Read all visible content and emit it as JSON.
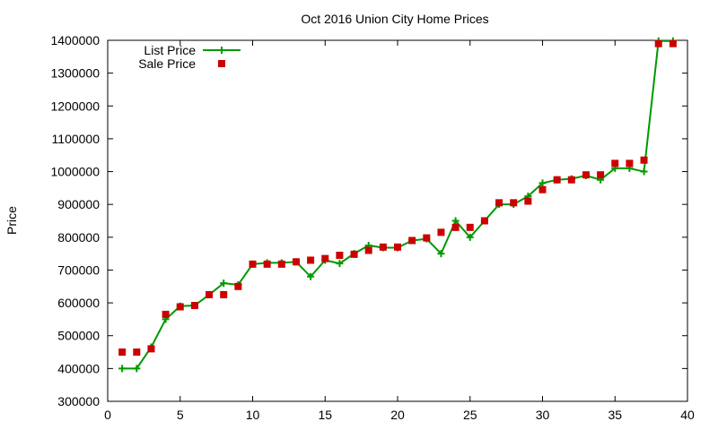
{
  "chart_data": {
    "type": "line",
    "title": "Oct 2016 Union City Home Prices",
    "xlabel": "",
    "ylabel": "Price",
    "xlim": [
      0,
      40
    ],
    "ylim": [
      300000,
      1400000
    ],
    "x_ticks": [
      0,
      5,
      10,
      15,
      20,
      25,
      30,
      35,
      40
    ],
    "y_ticks": [
      300000,
      400000,
      500000,
      600000,
      700000,
      800000,
      900000,
      1000000,
      1100000,
      1200000,
      1300000,
      1400000
    ],
    "grid": false,
    "legend_position": "top-left",
    "x": [
      1,
      2,
      3,
      4,
      5,
      6,
      7,
      8,
      9,
      10,
      11,
      12,
      13,
      14,
      15,
      16,
      17,
      18,
      19,
      20,
      21,
      22,
      23,
      24,
      25,
      26,
      27,
      28,
      29,
      30,
      31,
      32,
      33,
      34,
      35,
      36,
      37,
      38,
      39
    ],
    "series": [
      {
        "name": "List Price",
        "style": "line-cross",
        "color": "#009900",
        "values": [
          400000,
          400000,
          465000,
          550000,
          590000,
          592000,
          625000,
          660000,
          655000,
          718000,
          722000,
          722000,
          725000,
          680000,
          730000,
          720000,
          750000,
          775000,
          768000,
          768000,
          790000,
          795000,
          750000,
          850000,
          800000,
          850000,
          900000,
          900000,
          925000,
          965000,
          975000,
          978000,
          988000,
          975000,
          1010000,
          1010000,
          1000000,
          1398000,
          1398000
        ]
      },
      {
        "name": "Sale Price",
        "style": "square",
        "color": "#cc0000",
        "values": [
          450000,
          450000,
          460000,
          565000,
          588000,
          592000,
          625000,
          625000,
          650000,
          718000,
          718000,
          718000,
          725000,
          730000,
          735000,
          745000,
          748000,
          760000,
          770000,
          770000,
          790000,
          798000,
          815000,
          830000,
          830000,
          850000,
          905000,
          905000,
          910000,
          945000,
          975000,
          975000,
          990000,
          990000,
          1025000,
          1025000,
          1035000,
          1390000,
          1390000
        ]
      }
    ]
  }
}
